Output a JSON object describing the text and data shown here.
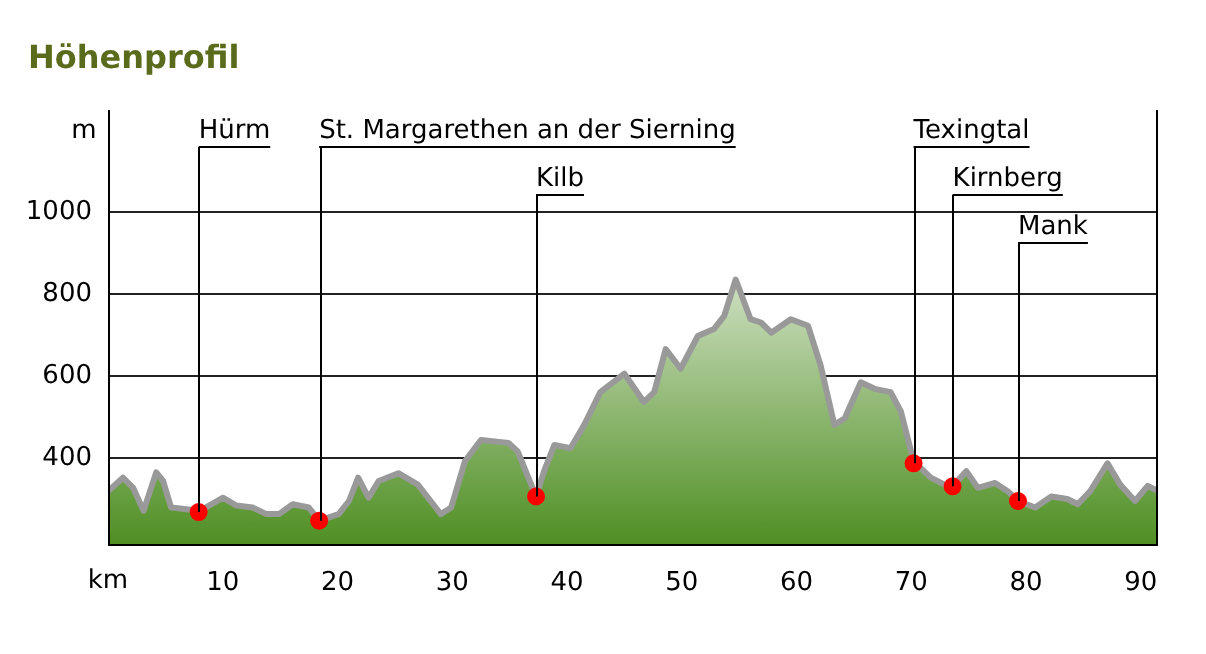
{
  "chart_data": {
    "type": "area",
    "title": "Höhenprofil",
    "xlabel": "km",
    "ylabel": "m",
    "xlim": [
      0,
      91.5
    ],
    "xticks": [
      10,
      20,
      30,
      40,
      50,
      60,
      70,
      80,
      90
    ],
    "ylim": [
      190,
      1250
    ],
    "yticks": [
      400,
      600,
      800,
      1000
    ],
    "grid": "y",
    "series": [
      {
        "color": "#4f8f23",
        "x": [
          0,
          1.3,
          2.2,
          3.1,
          4.2,
          4.8,
          5.5,
          8,
          10,
          11.2,
          12.6,
          13.8,
          14.9,
          16.1,
          17.5,
          18.4,
          20.1,
          21,
          21.8,
          22.7,
          23.6,
          25.3,
          27,
          29,
          29.9,
          31.1,
          32.5,
          34.9,
          35.7,
          37.3,
          38,
          38.9,
          40.3,
          41.5,
          42.9,
          45,
          46.7,
          47.6,
          48.6,
          49.9,
          51.4,
          52.8,
          53.7,
          54.7,
          56,
          56.9,
          57.8,
          59.5,
          61,
          62.1,
          63.3,
          64.2,
          65.6,
          66.8,
          68.2,
          69.1,
          70.2,
          71.7,
          72.9,
          73.6,
          74.8,
          75.8,
          77.3,
          78.4,
          79.3,
          80.8,
          82.2,
          83.6,
          84.5,
          85.6,
          87.1,
          88.2,
          89.5,
          90.6,
          91.5
        ],
        "values": [
          319,
          352,
          327,
          271,
          365,
          344,
          279,
          271,
          303,
          284,
          279,
          263,
          263,
          287,
          279,
          247,
          263,
          295,
          352,
          303,
          344,
          363,
          335,
          263,
          279,
          392,
          444,
          437,
          416,
          306,
          368,
          432,
          424,
          481,
          561,
          606,
          537,
          561,
          666,
          618,
          698,
          715,
          747,
          836,
          739,
          731,
          706,
          739,
          723,
          626,
          481,
          497,
          585,
          569,
          561,
          513,
          392,
          352,
          335,
          331,
          368,
          327,
          339,
          319,
          295,
          279,
          306,
          300,
          287,
          319,
          387,
          335,
          295,
          332,
          319
        ]
      },
      {
        "type": "scatter",
        "color": "#ff0000",
        "marker": "circle",
        "x": [
          7.9,
          18.4,
          37.3,
          70.2,
          73.6,
          79.3
        ],
        "values": [
          268,
          247,
          306,
          387,
          331,
          295
        ]
      }
    ],
    "annotations": [
      {
        "text": "Hürm",
        "x": 7.9,
        "y": 268
      },
      {
        "text": "St. Margarethen an der Sierning",
        "x": 18.4,
        "y": 247
      },
      {
        "text": "Kilb",
        "x": 37.3,
        "y": 306
      },
      {
        "text": "Texingtal",
        "x": 70.2,
        "y": 387
      },
      {
        "text": "Kirnberg",
        "x": 73.6,
        "y": 331
      },
      {
        "text": "Mank",
        "x": 79.3,
        "y": 295
      }
    ]
  }
}
